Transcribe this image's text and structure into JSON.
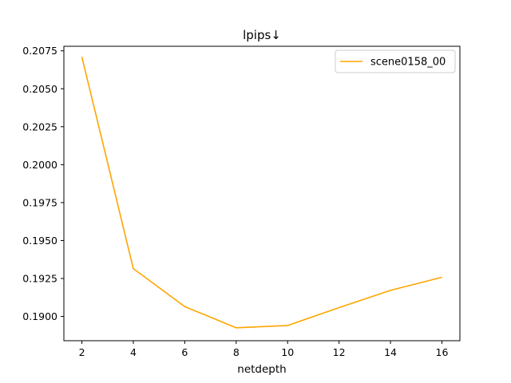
{
  "chart_data": {
    "type": "line",
    "title": "lpips↓",
    "xlabel": "netdepth",
    "ylabel": "",
    "x": [
      2,
      4,
      6,
      8,
      10,
      12,
      14,
      16
    ],
    "series": [
      {
        "name": "scene0158_00",
        "color": "#FFA500",
        "values": [
          0.2071,
          0.19315,
          0.19065,
          0.18925,
          0.1894,
          0.19058,
          0.19172,
          0.19258
        ]
      }
    ],
    "xticks": [
      "2",
      "4",
      "6",
      "8",
      "10",
      "12",
      "14",
      "16"
    ],
    "yticks": [
      "0.1900",
      "0.1925",
      "0.1950",
      "0.1975",
      "0.2000",
      "0.2025",
      "0.2050",
      "0.2075"
    ],
    "xlim": [
      1.3,
      16.7
    ],
    "ylim": [
      0.1884,
      0.2078
    ],
    "grid": false,
    "legend_position": "upper right"
  }
}
